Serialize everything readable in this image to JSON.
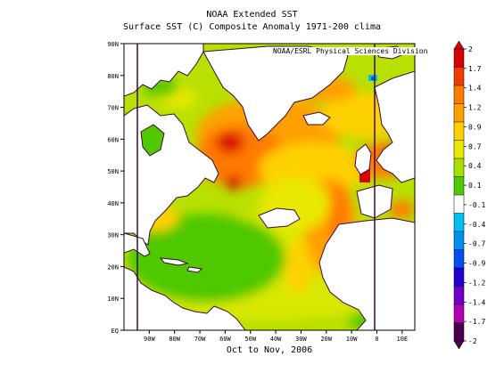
{
  "figure": {
    "title": "NOAA Extended SST",
    "subtitle": "Surface SST (C) Composite Anomaly 1971-200 clima",
    "credit": "NOAA/ESRL Physical Sciences Division",
    "period": "Oct to Nov, 2006"
  },
  "map": {
    "lat_labels": [
      "90N",
      "80N",
      "70N",
      "60N",
      "50N",
      "40N",
      "30N",
      "20N",
      "10N",
      "EQ"
    ],
    "lon_labels": [
      "90W",
      "80W",
      "70W",
      "60W",
      "50W",
      "40W",
      "30W",
      "20W",
      "10W",
      "0",
      "10E"
    ],
    "lon_range": [
      -100,
      15
    ],
    "lat_range": [
      0,
      90
    ],
    "land_color": "#ffffff",
    "coast_color": "#3a0a3a"
  },
  "colorbar": {
    "labels": [
      "2",
      "1.7",
      "1.4",
      "1.2",
      "0.9",
      "0.7",
      "0.4",
      "0.1",
      "-0.1",
      "-0.4",
      "-0.7",
      "-0.9",
      "-1.2",
      "-1.4",
      "-1.7",
      "-2"
    ],
    "colors": [
      "#d80000",
      "#f03c00",
      "#ff7a00",
      "#ffa000",
      "#ffd000",
      "#e8e800",
      "#a8e000",
      "#50c800",
      "#ffffff",
      "#00c0f0",
      "#0090f0",
      "#0050f0",
      "#2000d0",
      "#7000c8",
      "#b000b0",
      "#4a0050"
    ]
  }
}
